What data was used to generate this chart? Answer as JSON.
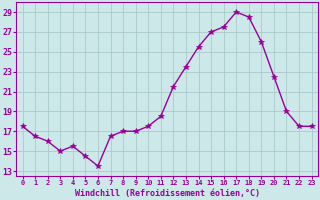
{
  "x": [
    0,
    1,
    2,
    3,
    4,
    5,
    6,
    7,
    8,
    9,
    10,
    11,
    12,
    13,
    14,
    15,
    16,
    17,
    18,
    19,
    20,
    21,
    22,
    23
  ],
  "y": [
    17.5,
    16.5,
    16.0,
    15.0,
    15.5,
    14.5,
    13.5,
    16.5,
    17.0,
    17.0,
    17.5,
    18.5,
    21.5,
    23.5,
    25.5,
    27.0,
    27.5,
    29.0,
    28.5,
    26.0,
    22.5,
    19.0,
    17.5,
    17.5
  ],
  "line_color": "#990099",
  "marker": "*",
  "marker_size": 4,
  "bg_color": "#cce8e8",
  "grid_color": "#aacaca",
  "xlabel": "Windchill (Refroidissement éolien,°C)",
  "ylabel_ticks": [
    13,
    15,
    17,
    19,
    21,
    23,
    25,
    27,
    29
  ],
  "ylim": [
    12.5,
    30.0
  ],
  "xlim": [
    -0.5,
    23.5
  ],
  "tick_color": "#990099",
  "spine_color": "#990099",
  "xlabel_color": "#990099"
}
